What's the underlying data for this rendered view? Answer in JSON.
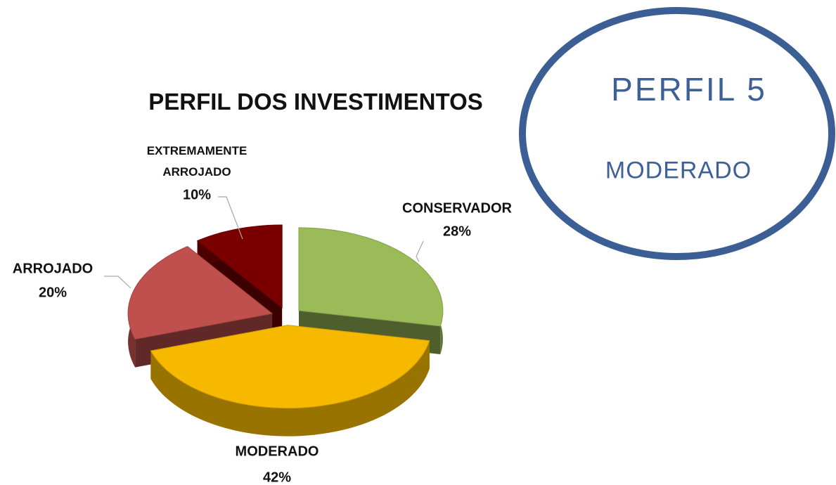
{
  "chart_data": {
    "type": "pie3d",
    "title": "PERFIL DOS INVESTIMENTOS",
    "categories": [
      "CONSERVADOR",
      "MODERADO",
      "ARROJADO",
      "EXTREMAMENTE ARROJADO"
    ],
    "values": [
      28,
      42,
      20,
      10
    ],
    "value_labels": [
      "28%",
      "42%",
      "20%",
      "10%"
    ],
    "colors": [
      "#9bbb59",
      "#f6b900",
      "#c0504d",
      "#7a0000"
    ]
  },
  "badge": {
    "title": "PERFIL 5",
    "subtitle": "MODERADO"
  }
}
